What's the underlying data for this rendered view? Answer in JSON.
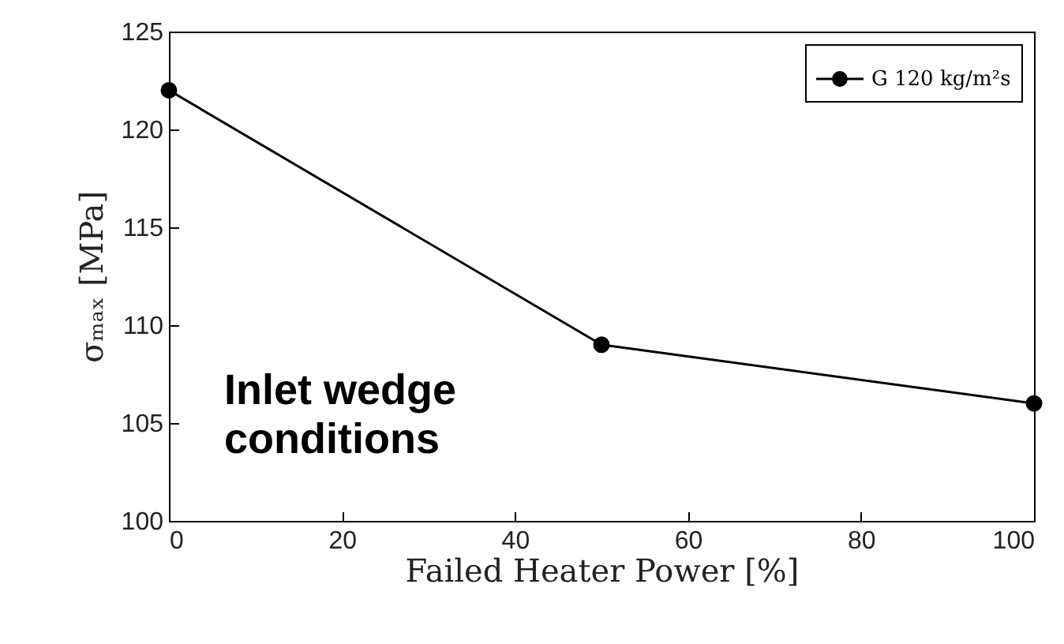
{
  "chart_data": {
    "type": "line",
    "xlabel": "Failed Heater Power [%]",
    "ylabel": "σₘₐₓ [MPa]",
    "x": [
      0,
      50,
      100
    ],
    "series": [
      {
        "name": "G 120 kg/m²s",
        "color": "#000000",
        "values": [
          122,
          109,
          106
        ]
      }
    ],
    "xlim": [
      0,
      100
    ],
    "xticks": [
      0,
      20,
      40,
      60,
      80,
      100
    ],
    "ylim": [
      100,
      125
    ],
    "yticks": [
      100,
      105,
      110,
      115,
      120,
      125
    ],
    "grid": false,
    "legend": "top right",
    "marker": "circle",
    "line_style": "solid",
    "annotations": [
      "Inlet wedge\nconditions"
    ]
  }
}
